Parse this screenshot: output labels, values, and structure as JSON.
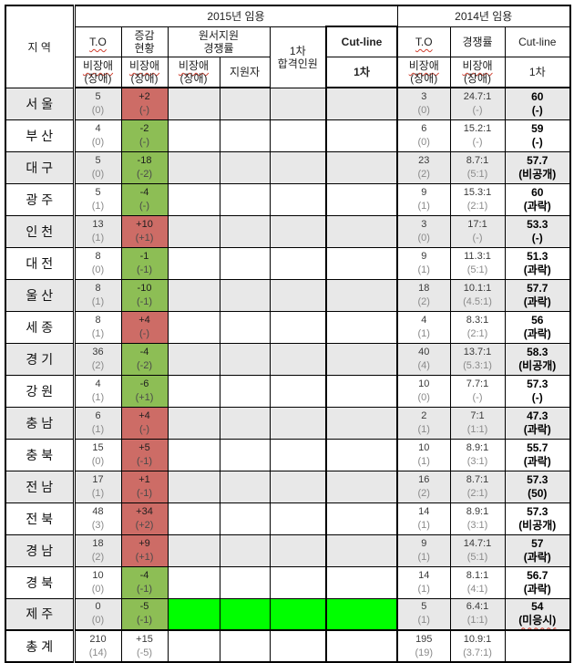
{
  "title_2015": "2015년 임용",
  "title_2014": "2014년 임용",
  "header": {
    "region": "지 역",
    "to": "T.O",
    "change_line1": "증감",
    "change_line2": "현황",
    "apply_line1": "원서지원",
    "apply_line2": "경쟁률",
    "pass_line1": "1차",
    "pass_line2": "합격인원",
    "cutline": "Cut-line",
    "first_round": "1차",
    "nondisabled_line1": "비장애",
    "nondisabled_line2": "(장애)",
    "applicant": "지원자",
    "to_2014": "T.O",
    "rate_2014": "경쟁률",
    "cutline_2014": "Cut-line",
    "first_round_2014": "1차"
  },
  "colors": {
    "red_fill": "#cd6c66",
    "green_fill": "#8dbe55",
    "bright_green_fill": "#00ff00",
    "gray_row": "#e8e8e8"
  },
  "rows": [
    {
      "region": "서 울",
      "to": "5",
      "to_p": "(0)",
      "chg": "+2",
      "chg_p": "(-)",
      "chg_fill": "red",
      "mid_fill": "none",
      "to14": "3",
      "to14_p": "(0)",
      "rate14": "24.7:1",
      "rate14_p": "(-)",
      "cut14": "60",
      "cut14_p": "(-)",
      "cut14_wavy": false,
      "total": false
    },
    {
      "region": "부 산",
      "to": "4",
      "to_p": "(0)",
      "chg": "-2",
      "chg_p": "(-)",
      "chg_fill": "green",
      "mid_fill": "none",
      "to14": "6",
      "to14_p": "(0)",
      "rate14": "15.2:1",
      "rate14_p": "(-)",
      "cut14": "59",
      "cut14_p": "(-)",
      "cut14_wavy": false,
      "total": false
    },
    {
      "region": "대 구",
      "to": "5",
      "to_p": "(0)",
      "chg": "-18",
      "chg_p": "(-2)",
      "chg_fill": "green",
      "mid_fill": "none",
      "to14": "23",
      "to14_p": "(2)",
      "rate14": "8.7:1",
      "rate14_p": "(5:1)",
      "cut14": "57.7",
      "cut14_p": "(비공개)",
      "cut14_wavy": false,
      "total": false
    },
    {
      "region": "광 주",
      "to": "5",
      "to_p": "(1)",
      "chg": "-4",
      "chg_p": "(-)",
      "chg_fill": "green",
      "mid_fill": "none",
      "to14": "9",
      "to14_p": "(1)",
      "rate14": "15.3:1",
      "rate14_p": "(2:1)",
      "cut14": "60",
      "cut14_p": "(과락)",
      "cut14_wavy": false,
      "total": false
    },
    {
      "region": "인 천",
      "to": "13",
      "to_p": "(1)",
      "chg": "+10",
      "chg_p": "(+1)",
      "chg_fill": "red",
      "mid_fill": "none",
      "to14": "3",
      "to14_p": "(0)",
      "rate14": "17:1",
      "rate14_p": "(-)",
      "cut14": "53.3",
      "cut14_p": "(-)",
      "cut14_wavy": false,
      "total": false
    },
    {
      "region": "대 전",
      "to": "8",
      "to_p": "(0)",
      "chg": "-1",
      "chg_p": "(-1)",
      "chg_fill": "green",
      "mid_fill": "none",
      "to14": "9",
      "to14_p": "(1)",
      "rate14": "11.3:1",
      "rate14_p": "(5:1)",
      "cut14": "51.3",
      "cut14_p": "(과락)",
      "cut14_wavy": false,
      "total": false
    },
    {
      "region": "울 산",
      "to": "8",
      "to_p": "(1)",
      "chg": "-10",
      "chg_p": "(-1)",
      "chg_fill": "green",
      "mid_fill": "none",
      "to14": "18",
      "to14_p": "(2)",
      "rate14": "10.1:1",
      "rate14_p": "(4.5:1)",
      "cut14": "57.7",
      "cut14_p": "(과락)",
      "cut14_wavy": false,
      "total": false
    },
    {
      "region": "세 종",
      "to": "8",
      "to_p": "(1)",
      "chg": "+4",
      "chg_p": "(-)",
      "chg_fill": "red",
      "mid_fill": "none",
      "to14": "4",
      "to14_p": "(1)",
      "rate14": "8.3:1",
      "rate14_p": "(2:1)",
      "cut14": "56",
      "cut14_p": "(과락)",
      "cut14_wavy": false,
      "total": false
    },
    {
      "region": "경 기",
      "to": "36",
      "to_p": "(2)",
      "chg": "-4",
      "chg_p": "(-2)",
      "chg_fill": "green",
      "mid_fill": "none",
      "to14": "40",
      "to14_p": "(4)",
      "rate14": "13.7:1",
      "rate14_p": "(5.3:1)",
      "cut14": "58.3",
      "cut14_p": "(비공개)",
      "cut14_wavy": false,
      "total": false
    },
    {
      "region": "강 원",
      "to": "4",
      "to_p": "(1)",
      "chg": "-6",
      "chg_p": "(+1)",
      "chg_fill": "green",
      "mid_fill": "none",
      "to14": "10",
      "to14_p": "(0)",
      "rate14": "7.7:1",
      "rate14_p": "(-)",
      "cut14": "57.3",
      "cut14_p": "(-)",
      "cut14_wavy": false,
      "total": false
    },
    {
      "region": "충 남",
      "to": "6",
      "to_p": "(1)",
      "chg": "+4",
      "chg_p": "(-)",
      "chg_fill": "red",
      "mid_fill": "none",
      "to14": "2",
      "to14_p": "(1)",
      "rate14": "7:1",
      "rate14_p": "(1:1)",
      "cut14": "47.3",
      "cut14_p": "(과락)",
      "cut14_wavy": false,
      "total": false
    },
    {
      "region": "충 북",
      "to": "15",
      "to_p": "(0)",
      "chg": "+5",
      "chg_p": "(-1)",
      "chg_fill": "red",
      "mid_fill": "none",
      "to14": "10",
      "to14_p": "(1)",
      "rate14": "8.9:1",
      "rate14_p": "(3:1)",
      "cut14": "55.7",
      "cut14_p": "(과락)",
      "cut14_wavy": false,
      "total": false
    },
    {
      "region": "전 남",
      "to": "17",
      "to_p": "(1)",
      "chg": "+1",
      "chg_p": "(-1)",
      "chg_fill": "red",
      "mid_fill": "none",
      "to14": "16",
      "to14_p": "(2)",
      "rate14": "8.7:1",
      "rate14_p": "(2:1)",
      "cut14": "57.3",
      "cut14_p": "(50)",
      "cut14_wavy": false,
      "total": false
    },
    {
      "region": "전 북",
      "to": "48",
      "to_p": "(3)",
      "chg": "+34",
      "chg_p": "(+2)",
      "chg_fill": "red",
      "mid_fill": "none",
      "to14": "14",
      "to14_p": "(1)",
      "rate14": "8.9:1",
      "rate14_p": "(3:1)",
      "cut14": "57.3",
      "cut14_p": "(비공개)",
      "cut14_wavy": false,
      "total": false
    },
    {
      "region": "경 남",
      "to": "18",
      "to_p": "(2)",
      "chg": "+9",
      "chg_p": "(+1)",
      "chg_fill": "red",
      "mid_fill": "none",
      "to14": "9",
      "to14_p": "(1)",
      "rate14": "14.7:1",
      "rate14_p": "(5:1)",
      "cut14": "57",
      "cut14_p": "(과락)",
      "cut14_wavy": false,
      "total": false
    },
    {
      "region": "경 북",
      "to": "10",
      "to_p": "(0)",
      "chg": "-4",
      "chg_p": "(-1)",
      "chg_fill": "green",
      "mid_fill": "none",
      "to14": "14",
      "to14_p": "(1)",
      "rate14": "8.1:1",
      "rate14_p": "(4:1)",
      "cut14": "56.7",
      "cut14_p": "(과락)",
      "cut14_wavy": false,
      "total": false
    },
    {
      "region": "제 주",
      "to": "0",
      "to_p": "(0)",
      "chg": "-5",
      "chg_p": "(-1)",
      "chg_fill": "green",
      "mid_fill": "bright",
      "to14": "5",
      "to14_p": "(1)",
      "rate14": "6.4:1",
      "rate14_p": "(1:1)",
      "cut14": "54",
      "cut14_p": "(미응시)",
      "cut14_wavy": true,
      "total": false
    },
    {
      "region": "총 계",
      "to": "210",
      "to_p": "(14)",
      "chg": "+15",
      "chg_p": "(-5)",
      "chg_fill": "none",
      "mid_fill": "none",
      "to14": "195",
      "to14_p": "(19)",
      "rate14": "10.9:1",
      "rate14_p": "(3.7:1)",
      "cut14": "",
      "cut14_p": "",
      "cut14_wavy": false,
      "total": true
    }
  ]
}
